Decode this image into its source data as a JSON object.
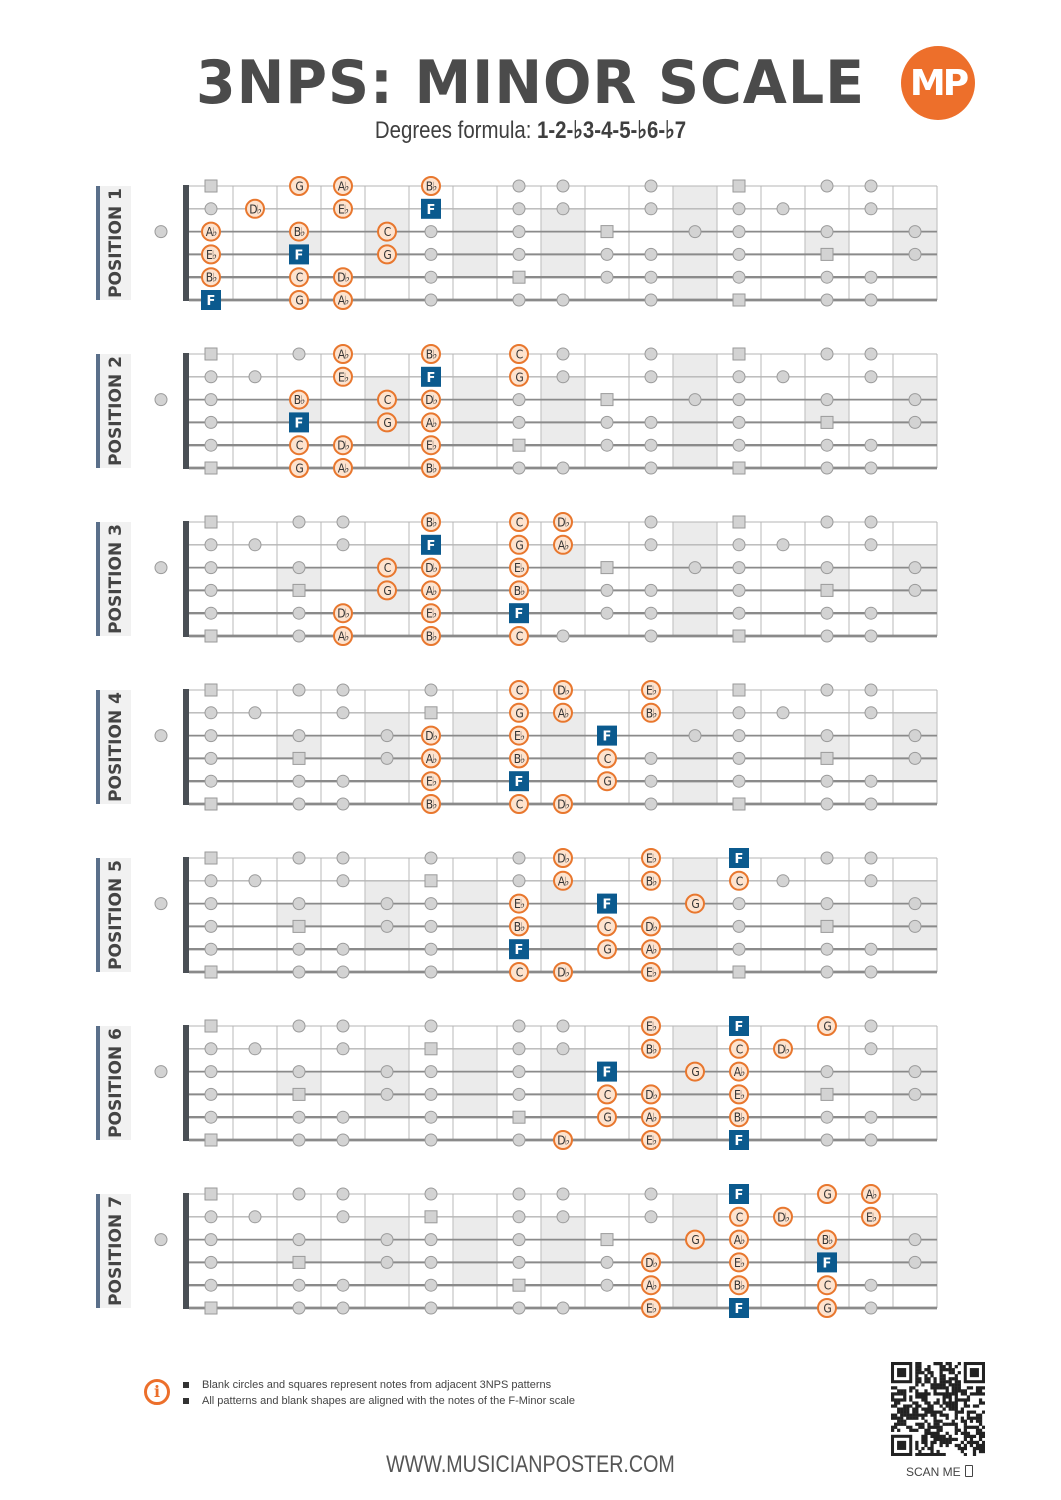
{
  "header": {
    "title": "3NPS: MINOR SCALE",
    "formula_prefix": "Degrees formula: ",
    "formula": "1-2-♭3-4-5-♭6-♭7",
    "logo_text": "MP"
  },
  "colors": {
    "note_stroke": "#e8772e",
    "note_fill": "#fde3cf",
    "root_fill": "#0b5a8e",
    "ghost_fill": "#d3d3d3",
    "ghost_stroke": "#9a9a9a",
    "text": "#4a4a4a"
  },
  "fretboard": {
    "frets": 17,
    "inlay_frets": [
      3,
      5,
      7,
      9,
      12,
      15,
      17
    ]
  },
  "positions": [
    {
      "label": "POSITION 1",
      "strings": [
        [
          [
            3,
            "G"
          ],
          [
            4,
            "A♭"
          ],
          [
            6,
            "B♭"
          ]
        ],
        [
          [
            2,
            "D♭"
          ],
          [
            4,
            "E♭"
          ],
          [
            6,
            "F"
          ]
        ],
        [
          [
            1,
            "A♭"
          ],
          [
            3,
            "B♭"
          ],
          [
            5,
            "C"
          ]
        ],
        [
          [
            1,
            "E♭"
          ],
          [
            3,
            "F"
          ],
          [
            5,
            "G"
          ]
        ],
        [
          [
            1,
            "B♭"
          ],
          [
            3,
            "C"
          ],
          [
            4,
            "D♭"
          ]
        ],
        [
          [
            1,
            "F"
          ],
          [
            3,
            "G"
          ],
          [
            4,
            "A♭"
          ]
        ]
      ]
    },
    {
      "label": "POSITION 2",
      "strings": [
        [
          [
            4,
            "A♭"
          ],
          [
            6,
            "B♭"
          ],
          [
            8,
            "C"
          ]
        ],
        [
          [
            4,
            "E♭"
          ],
          [
            6,
            "F"
          ],
          [
            8,
            "G"
          ]
        ],
        [
          [
            3,
            "B♭"
          ],
          [
            5,
            "C"
          ],
          [
            6,
            "D♭"
          ]
        ],
        [
          [
            3,
            "F"
          ],
          [
            5,
            "G"
          ],
          [
            6,
            "A♭"
          ]
        ],
        [
          [
            3,
            "C"
          ],
          [
            4,
            "D♭"
          ],
          [
            6,
            "E♭"
          ]
        ],
        [
          [
            3,
            "G"
          ],
          [
            4,
            "A♭"
          ],
          [
            6,
            "B♭"
          ]
        ]
      ]
    },
    {
      "label": "POSITION 3",
      "strings": [
        [
          [
            6,
            "B♭"
          ],
          [
            8,
            "C"
          ],
          [
            9,
            "D♭"
          ]
        ],
        [
          [
            6,
            "F"
          ],
          [
            8,
            "G"
          ],
          [
            9,
            "A♭"
          ]
        ],
        [
          [
            5,
            "C"
          ],
          [
            6,
            "D♭"
          ],
          [
            8,
            "E♭"
          ]
        ],
        [
          [
            5,
            "G"
          ],
          [
            6,
            "A♭"
          ],
          [
            8,
            "B♭"
          ]
        ],
        [
          [
            4,
            "D♭"
          ],
          [
            6,
            "E♭"
          ],
          [
            8,
            "F"
          ]
        ],
        [
          [
            4,
            "A♭"
          ],
          [
            6,
            "B♭"
          ],
          [
            8,
            "C"
          ]
        ]
      ]
    },
    {
      "label": "POSITION 4",
      "strings": [
        [
          [
            8,
            "C"
          ],
          [
            9,
            "D♭"
          ],
          [
            11,
            "E♭"
          ]
        ],
        [
          [
            8,
            "G"
          ],
          [
            9,
            "A♭"
          ],
          [
            11,
            "B♭"
          ]
        ],
        [
          [
            6,
            "D♭"
          ],
          [
            8,
            "E♭"
          ],
          [
            10,
            "F"
          ]
        ],
        [
          [
            6,
            "A♭"
          ],
          [
            8,
            "B♭"
          ],
          [
            10,
            "C"
          ]
        ],
        [
          [
            6,
            "E♭"
          ],
          [
            8,
            "F"
          ],
          [
            10,
            "G"
          ]
        ],
        [
          [
            6,
            "B♭"
          ],
          [
            8,
            "C"
          ],
          [
            9,
            "D♭"
          ]
        ]
      ]
    },
    {
      "label": "POSITION 5",
      "strings": [
        [
          [
            9,
            "D♭"
          ],
          [
            11,
            "E♭"
          ],
          [
            13,
            "F"
          ]
        ],
        [
          [
            9,
            "A♭"
          ],
          [
            11,
            "B♭"
          ],
          [
            13,
            "C"
          ]
        ],
        [
          [
            8,
            "E♭"
          ],
          [
            10,
            "F"
          ],
          [
            12,
            "G"
          ]
        ],
        [
          [
            8,
            "B♭"
          ],
          [
            10,
            "C"
          ],
          [
            11,
            "D♭"
          ]
        ],
        [
          [
            8,
            "F"
          ],
          [
            10,
            "G"
          ],
          [
            11,
            "A♭"
          ]
        ],
        [
          [
            8,
            "C"
          ],
          [
            9,
            "D♭"
          ],
          [
            11,
            "E♭"
          ]
        ]
      ]
    },
    {
      "label": "POSITION 6",
      "strings": [
        [
          [
            11,
            "E♭"
          ],
          [
            13,
            "F"
          ],
          [
            15,
            "G"
          ]
        ],
        [
          [
            11,
            "B♭"
          ],
          [
            13,
            "C"
          ],
          [
            14,
            "D♭"
          ]
        ],
        [
          [
            10,
            "F"
          ],
          [
            12,
            "G"
          ],
          [
            13,
            "A♭"
          ]
        ],
        [
          [
            10,
            "C"
          ],
          [
            11,
            "D♭"
          ],
          [
            13,
            "E♭"
          ]
        ],
        [
          [
            10,
            "G"
          ],
          [
            11,
            "A♭"
          ],
          [
            13,
            "B♭"
          ]
        ],
        [
          [
            9,
            "D♭"
          ],
          [
            11,
            "E♭"
          ],
          [
            13,
            "F"
          ]
        ]
      ]
    },
    {
      "label": "POSITION 7",
      "strings": [
        [
          [
            13,
            "F"
          ],
          [
            15,
            "G"
          ],
          [
            16,
            "A♭"
          ]
        ],
        [
          [
            13,
            "C"
          ],
          [
            14,
            "D♭"
          ],
          [
            16,
            "E♭"
          ]
        ],
        [
          [
            12,
            "G"
          ],
          [
            13,
            "A♭"
          ],
          [
            15,
            "B♭"
          ]
        ],
        [
          [
            11,
            "D♭"
          ],
          [
            13,
            "E♭"
          ],
          [
            15,
            "F"
          ]
        ],
        [
          [
            11,
            "A♭"
          ],
          [
            13,
            "B♭"
          ],
          [
            15,
            "C"
          ]
        ],
        [
          [
            11,
            "E♭"
          ],
          [
            13,
            "F"
          ],
          [
            15,
            "G"
          ]
        ]
      ]
    }
  ],
  "footer": {
    "notes": [
      "Blank circles and squares represent notes from adjacent 3NPS patterns",
      "All patterns and blank shapes are aligned with the notes of the F-Minor scale"
    ],
    "website": "WWW.MUSICIANPOSTER.COM",
    "scan_label": "SCAN ME"
  }
}
